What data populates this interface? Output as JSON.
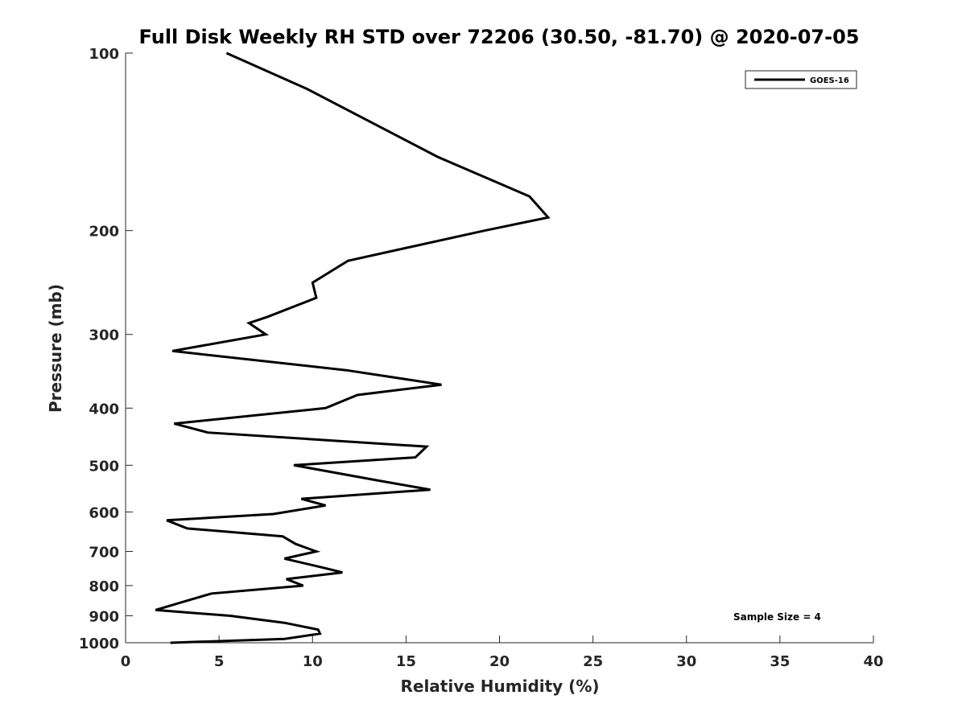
{
  "chart_data": {
    "type": "line",
    "title": "Full Disk Weekly RH STD over 72206 (30.50, -81.70) @ 2020-07-05",
    "xlabel": "Relative Humidity (%)",
    "ylabel": "Pressure (mb)",
    "xlim": [
      0,
      40
    ],
    "ylim": [
      100,
      1000
    ],
    "yscale": "log",
    "y_reversed": true,
    "xticks": [
      0,
      5,
      10,
      15,
      20,
      25,
      30,
      35,
      40
    ],
    "yticks": [
      100,
      200,
      300,
      400,
      500,
      600,
      700,
      800,
      900,
      1000
    ],
    "grid": false,
    "legend_position": "top-right",
    "annotation": "Sample Size = 4",
    "series": [
      {
        "name": "GOES-16",
        "color": "#000000",
        "x": [
          5.4,
          9.7,
          16.7,
          21.6,
          22.6,
          19.2,
          11.9,
          10.0,
          10.2,
          7.6,
          6.6,
          7.5,
          2.5,
          11.8,
          16.9,
          12.4,
          10.7,
          2.6,
          4.4,
          16.1,
          15.5,
          9.0,
          13.4,
          16.3,
          9.4,
          10.7,
          7.9,
          2.2,
          3.3,
          8.4,
          9.1,
          10.2,
          8.5,
          10.5,
          11.6,
          8.6,
          9.5,
          4.6,
          3.2,
          1.6,
          5.6,
          8.5,
          10.3,
          10.4,
          8.5,
          2.4
        ],
        "y": [
          100,
          115,
          150,
          175,
          190,
          200,
          225,
          245,
          260,
          280,
          287,
          300,
          320,
          345,
          365,
          380,
          400,
          425,
          440,
          465,
          485,
          500,
          530,
          550,
          570,
          585,
          605,
          620,
          640,
          660,
          680,
          700,
          720,
          745,
          760,
          780,
          800,
          825,
          850,
          880,
          900,
          925,
          950,
          965,
          985,
          1000
        ]
      }
    ]
  }
}
